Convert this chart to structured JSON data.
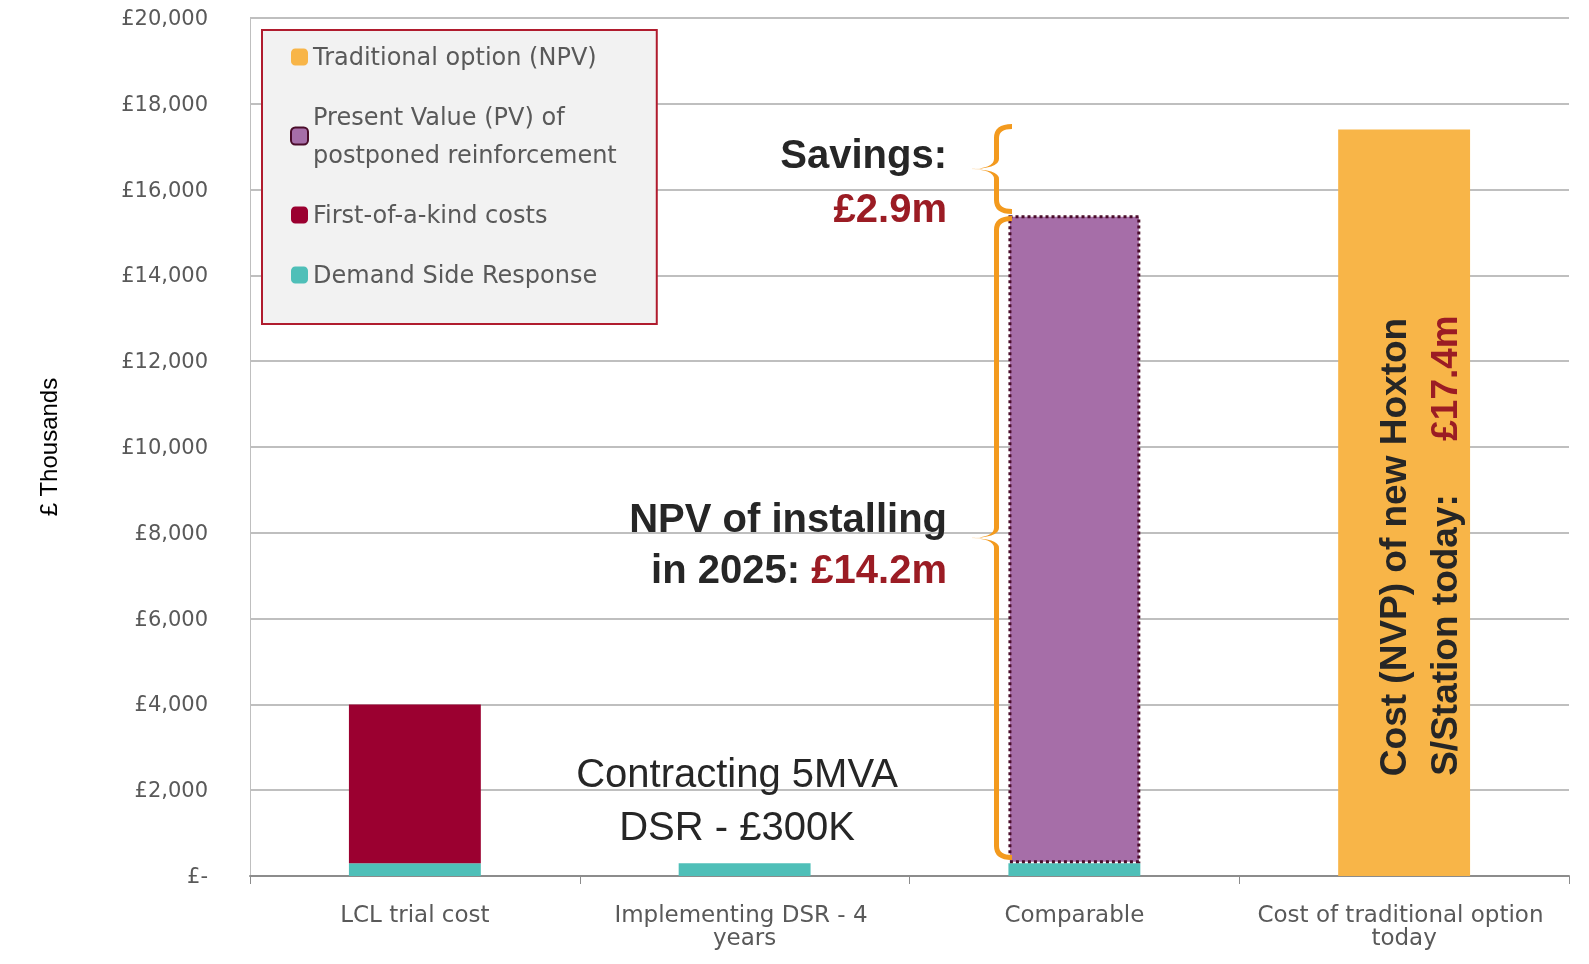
{
  "chart_data": {
    "type": "bar",
    "stacked": true,
    "ylabel": "£ Thousands",
    "categories": [
      "LCL trial cost",
      "Implementing DSR - 4 years",
      "Comparable",
      "Cost of traditional option today"
    ],
    "series": [
      {
        "name": "Demand Side Response",
        "color": "#4fbfb8",
        "values": [
          300,
          300,
          300,
          null
        ]
      },
      {
        "name": "First-of-a-kind costs",
        "color": "#9b0030",
        "values": [
          3700,
          null,
          null,
          null
        ]
      },
      {
        "name": "Present Value (PV) of\npostponed reinforcement",
        "color": "#a66ea8",
        "values": [
          null,
          null,
          15100,
          null
        ]
      },
      {
        "name": "Traditional option (NPV)",
        "color": "#f8b548",
        "values": [
          null,
          null,
          null,
          17400
        ]
      }
    ],
    "ylim": [
      0,
      20000
    ],
    "yticks": [
      {
        "value": 0,
        "label": "£-"
      },
      {
        "value": 2000,
        "label": "£2,000"
      },
      {
        "value": 4000,
        "label": "£4,000"
      },
      {
        "value": 6000,
        "label": "£6,000"
      },
      {
        "value": 8000,
        "label": "£8,000"
      },
      {
        "value": 10000,
        "label": "£10,000"
      },
      {
        "value": 12000,
        "label": "£12,000"
      },
      {
        "value": 14000,
        "label": "£14,000"
      },
      {
        "value": 16000,
        "label": "£16,000"
      },
      {
        "value": 18000,
        "label": "£18,000"
      },
      {
        "value": 20000,
        "label": "£20,000"
      }
    ],
    "grid": "y",
    "legend": "top left",
    "annotations": [
      "Savings:",
      "£2.9m",
      "NPV of installing",
      "in 2025:",
      "£14.2m",
      "Contracting 5MVA",
      "DSR - £300K",
      "Cost (NVP) of new Hoxton",
      "S/Station today:",
      "£17.4m"
    ]
  }
}
